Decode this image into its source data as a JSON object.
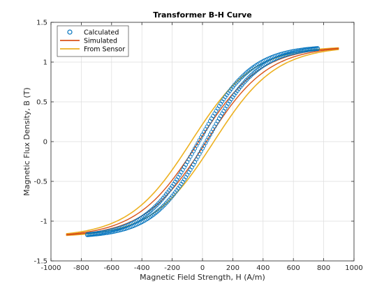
{
  "chart_data": {
    "type": "line",
    "title": "Transformer B-H Curve",
    "xlabel": "Magnetic Field Strength, H (A/m)",
    "ylabel": "Magnetic Flux Density, B (T)",
    "xlim": [
      -1000,
      1000
    ],
    "ylim": [
      -1.5,
      1.5
    ],
    "xticks": [
      "-1000",
      "-800",
      "-600",
      "-400",
      "-200",
      "0",
      "200",
      "400",
      "600",
      "800",
      "1000"
    ],
    "yticks": [
      "-1.5",
      "-1",
      "-0.5",
      "0",
      "0.5",
      "1",
      "1.5"
    ],
    "grid": true,
    "legend_position": "top-left",
    "series": [
      {
        "name": "Calculated",
        "style": "markers",
        "color": "#0072BD",
        "H_max": 760,
        "B_sat": 1.2,
        "coercive_H": 25,
        "branches": [
          {
            "direction": "ascending",
            "H": [
              -760,
              -700,
              -600,
              -500,
              -400,
              -300,
              -250,
              -200,
              -150,
              -100,
              -75,
              -50,
              -25,
              0,
              25,
              50,
              75,
              100,
              150,
              200,
              250,
              300,
              400,
              500,
              600,
              700,
              760
            ],
            "B": [
              -1.19,
              -1.18,
              -1.16,
              -1.12,
              -1.05,
              -0.93,
              -0.85,
              -0.74,
              -0.6,
              -0.44,
              -0.35,
              -0.26,
              -0.16,
              -0.07,
              0.02,
              0.11,
              0.2,
              0.29,
              0.46,
              0.61,
              0.74,
              0.85,
              1.02,
              1.11,
              1.16,
              1.19,
              1.2
            ]
          },
          {
            "direction": "descending",
            "H": [
              760,
              700,
              600,
              500,
              400,
              300,
              250,
              200,
              150,
              100,
              75,
              50,
              25,
              0,
              -25,
              -50,
              -75,
              -100,
              -150,
              -200,
              -250,
              -300,
              -400,
              -500,
              -600,
              -700,
              -760
            ],
            "B": [
              1.2,
              1.19,
              1.17,
              1.13,
              1.06,
              0.94,
              0.86,
              0.75,
              0.61,
              0.45,
              0.36,
              0.27,
              0.17,
              0.08,
              -0.01,
              -0.1,
              -0.19,
              -0.28,
              -0.45,
              -0.6,
              -0.73,
              -0.84,
              -1.01,
              -1.1,
              -1.15,
              -1.18,
              -1.19
            ]
          }
        ]
      },
      {
        "name": "Simulated",
        "style": "line",
        "color": "#D95319",
        "H_max": 900,
        "B_sat": 1.2,
        "coercive_H": 25,
        "branches": [
          {
            "direction": "ascending",
            "H": [
              -900,
              -800,
              -700,
              -600,
              -500,
              -400,
              -300,
              -200,
              -100,
              0,
              100,
              200,
              300,
              400,
              500,
              600,
              700,
              800,
              900
            ],
            "B": [
              -1.2,
              -1.19,
              -1.18,
              -1.16,
              -1.12,
              -1.05,
              -0.93,
              -0.74,
              -0.44,
              -0.07,
              0.29,
              0.61,
              0.85,
              1.02,
              1.11,
              1.16,
              1.19,
              1.2,
              1.2
            ]
          },
          {
            "direction": "descending",
            "H": [
              900,
              800,
              700,
              600,
              500,
              400,
              300,
              200,
              100,
              0,
              -100,
              -200,
              -300,
              -400,
              -500,
              -600,
              -700,
              -800,
              -900
            ],
            "B": [
              1.2,
              1.2,
              1.19,
              1.17,
              1.13,
              1.06,
              0.94,
              0.75,
              0.45,
              0.08,
              -0.28,
              -0.6,
              -0.84,
              -1.01,
              -1.1,
              -1.15,
              -1.18,
              -1.19,
              -1.2
            ]
          }
        ]
      },
      {
        "name": "From Sensor",
        "style": "line",
        "color": "#EDB120",
        "H_max": 900,
        "B_sat": 1.2,
        "coercive_H": 75,
        "branches": [
          {
            "direction": "ascending",
            "H": [
              -900,
              -800,
              -700,
              -600,
              -500,
              -400,
              -300,
              -200,
              -100,
              0,
              100,
              200,
              300,
              400,
              500,
              600,
              700,
              800,
              900
            ],
            "B": [
              -1.2,
              -1.2,
              -1.19,
              -1.17,
              -1.13,
              -1.07,
              -0.97,
              -0.81,
              -0.55,
              -0.21,
              0.17,
              0.49,
              0.74,
              0.93,
              1.05,
              1.12,
              1.16,
              1.19,
              1.2
            ]
          },
          {
            "direction": "descending",
            "H": [
              900,
              800,
              700,
              600,
              500,
              400,
              300,
              200,
              100,
              0,
              -100,
              -200,
              -300,
              -400,
              -500,
              -600,
              -700,
              -800,
              -900
            ],
            "B": [
              1.2,
              1.2,
              1.19,
              1.17,
              1.13,
              1.07,
              0.97,
              0.81,
              0.55,
              0.21,
              -0.17,
              -0.49,
              -0.74,
              -0.93,
              -1.05,
              -1.12,
              -1.16,
              -1.19,
              -1.2
            ]
          }
        ]
      }
    ]
  }
}
